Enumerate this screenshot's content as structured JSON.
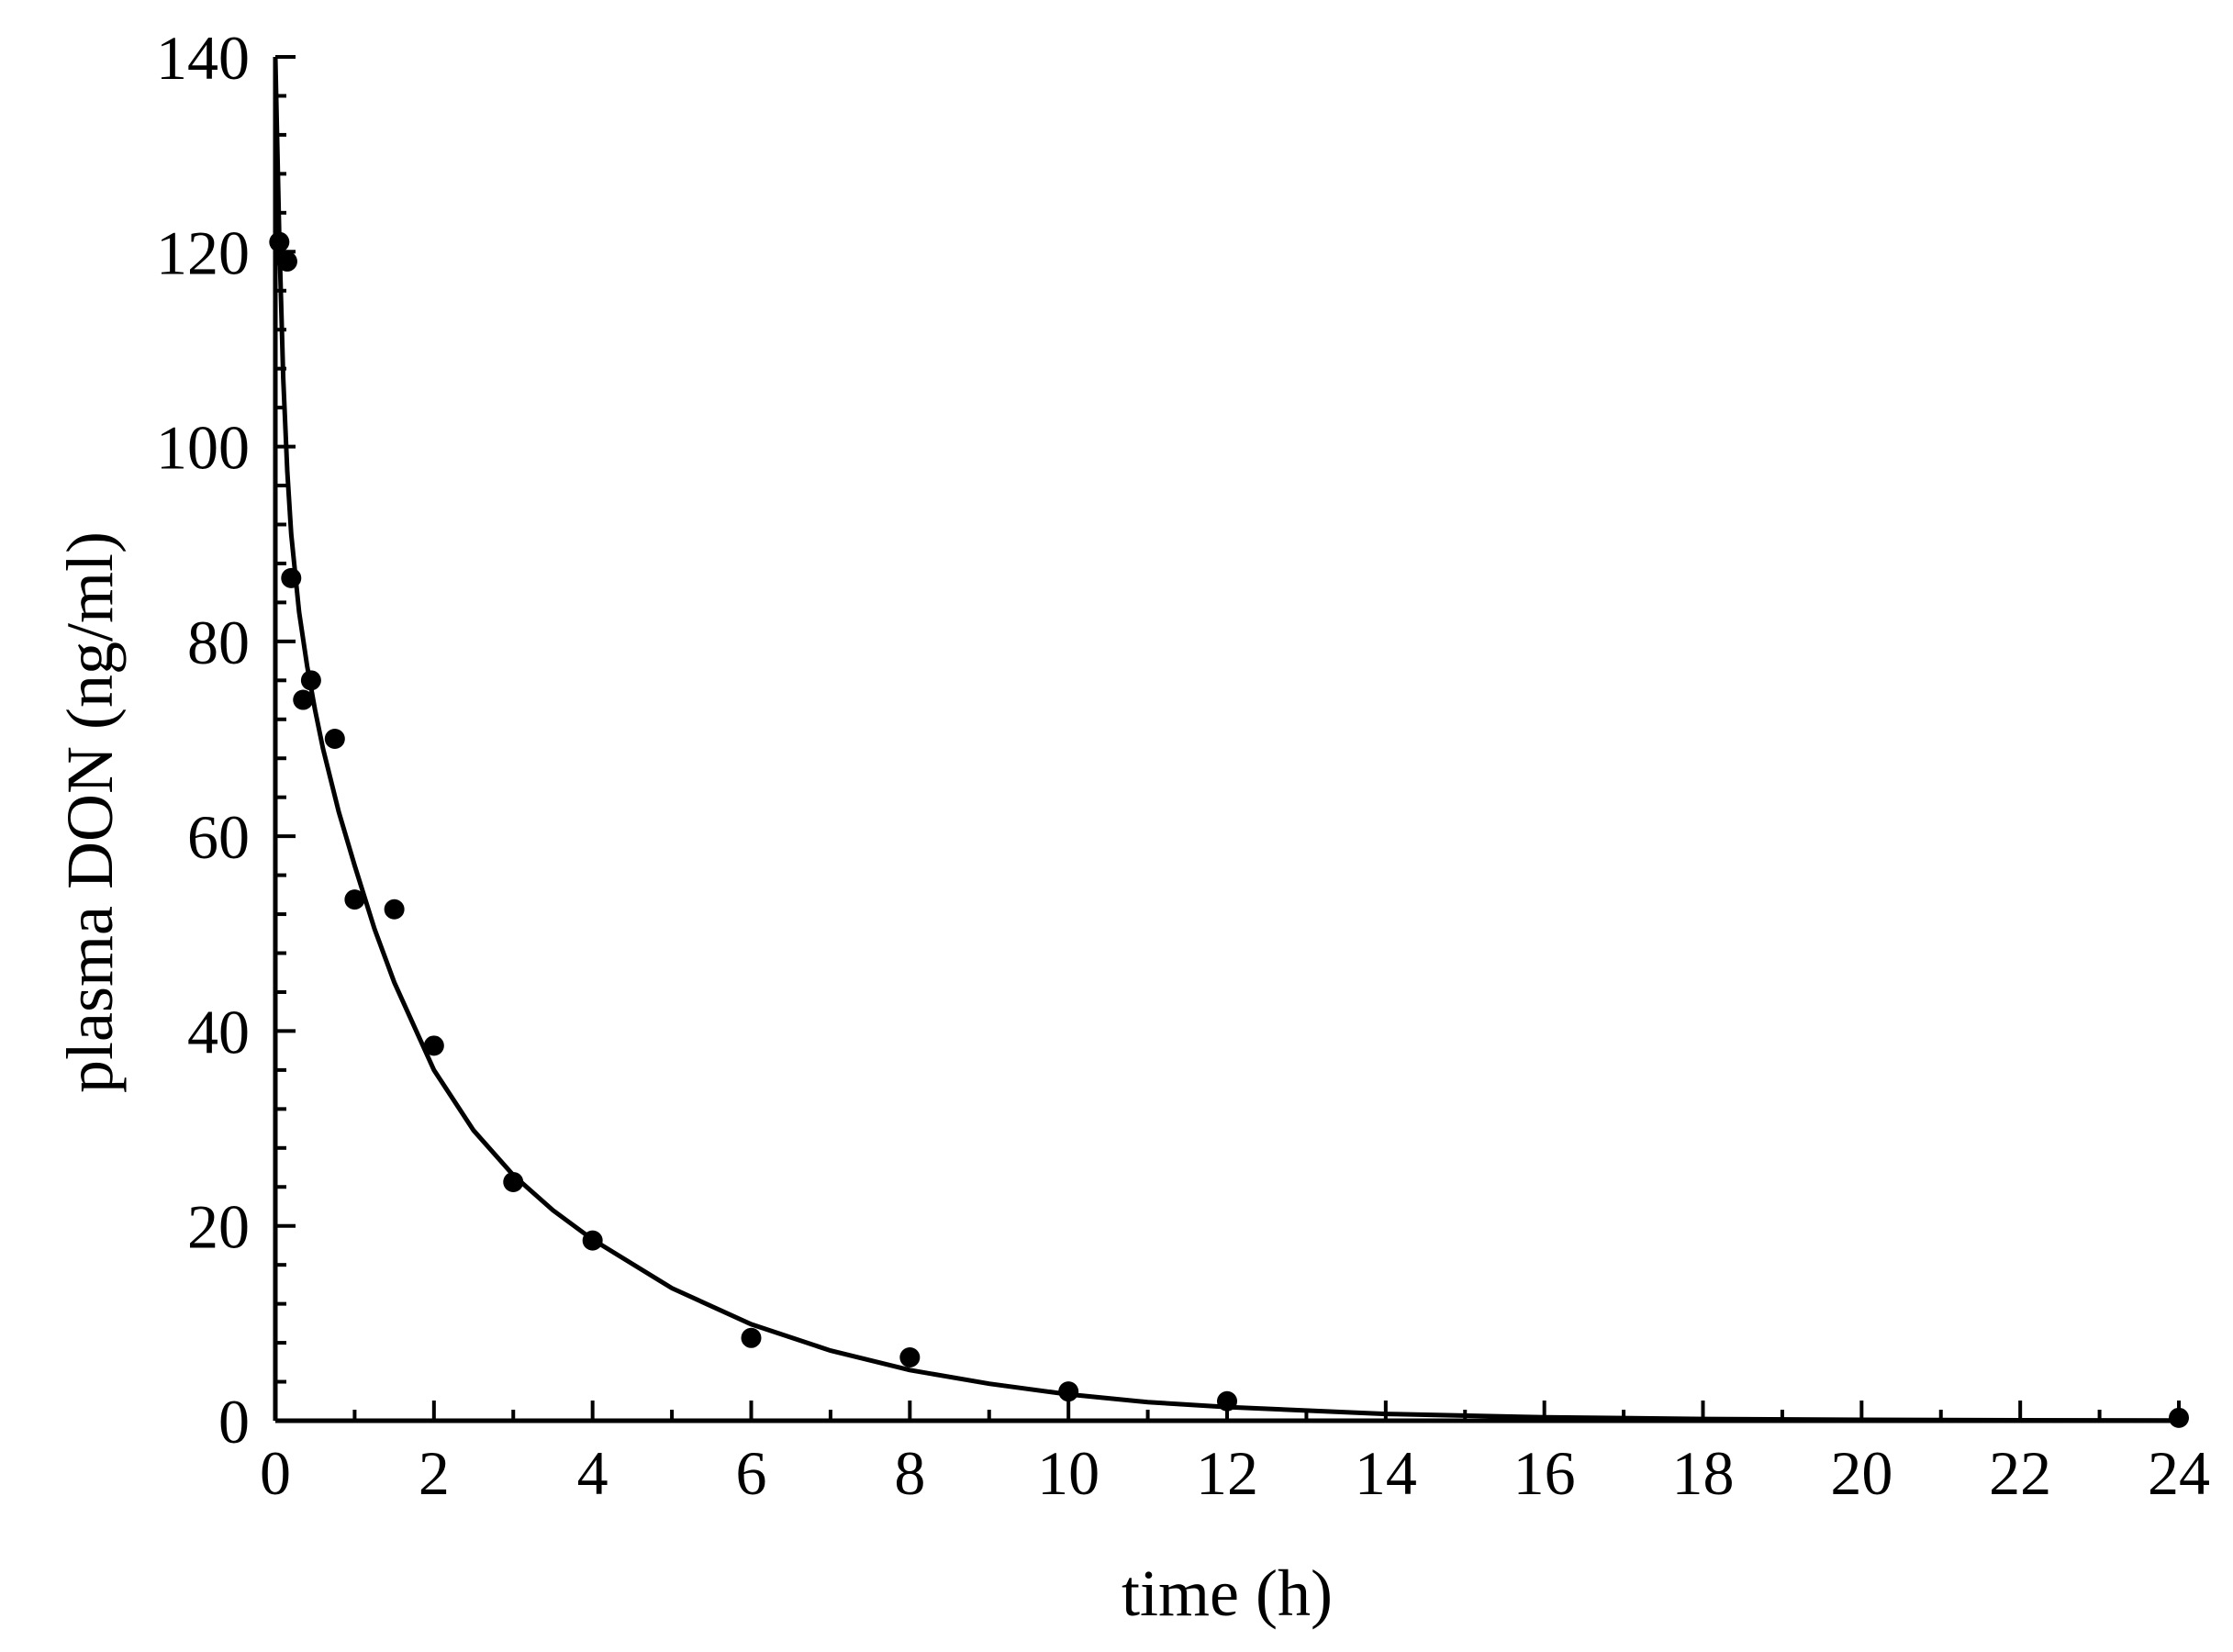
{
  "chart_data": {
    "type": "scatter",
    "title": "",
    "xlabel": "time (h)",
    "ylabel": "plasma DON (ng/ml)",
    "xlim": [
      0,
      24
    ],
    "ylim": [
      0,
      140
    ],
    "x_ticks": [
      0,
      2,
      4,
      6,
      8,
      10,
      12,
      14,
      16,
      18,
      20,
      22,
      24
    ],
    "y_ticks": [
      0,
      20,
      40,
      60,
      80,
      100,
      120,
      140
    ],
    "grid": false,
    "legend": "none",
    "series": [
      {
        "type": "scatter",
        "x": [
          0.05,
          0.15,
          0.2,
          0.35,
          0.45,
          0.75,
          1.0,
          1.5,
          2.0,
          3.0,
          4.0,
          6.0,
          8.0,
          10.0,
          12.0,
          24.0
        ],
        "y": [
          121,
          119,
          86.5,
          74,
          76,
          70,
          53.5,
          52.5,
          38.5,
          24.5,
          18.5,
          8.5,
          6.5,
          3.0,
          2.0,
          0.3
        ]
      },
      {
        "type": "line",
        "x": [
          0,
          0.05,
          0.1,
          0.15,
          0.2,
          0.3,
          0.4,
          0.5,
          0.6,
          0.8,
          1.0,
          1.25,
          1.5,
          2.0,
          2.5,
          3.0,
          3.5,
          4.0,
          5.0,
          6.0,
          7.0,
          8.0,
          9.0,
          10.0,
          11.0,
          12.0,
          14.0,
          16.0,
          18.0,
          20.0,
          22.0,
          24.0
        ],
        "y": [
          140,
          121.5,
          107,
          97.5,
          91,
          83,
          77.5,
          73,
          69,
          62.5,
          57,
          50.5,
          45,
          36,
          29.8,
          25.2,
          21.6,
          18.6,
          13.6,
          9.9,
          7.2,
          5.2,
          3.8,
          2.7,
          1.9,
          1.4,
          0.7,
          0.35,
          0.18,
          0.09,
          0.05,
          0.02
        ]
      }
    ]
  }
}
